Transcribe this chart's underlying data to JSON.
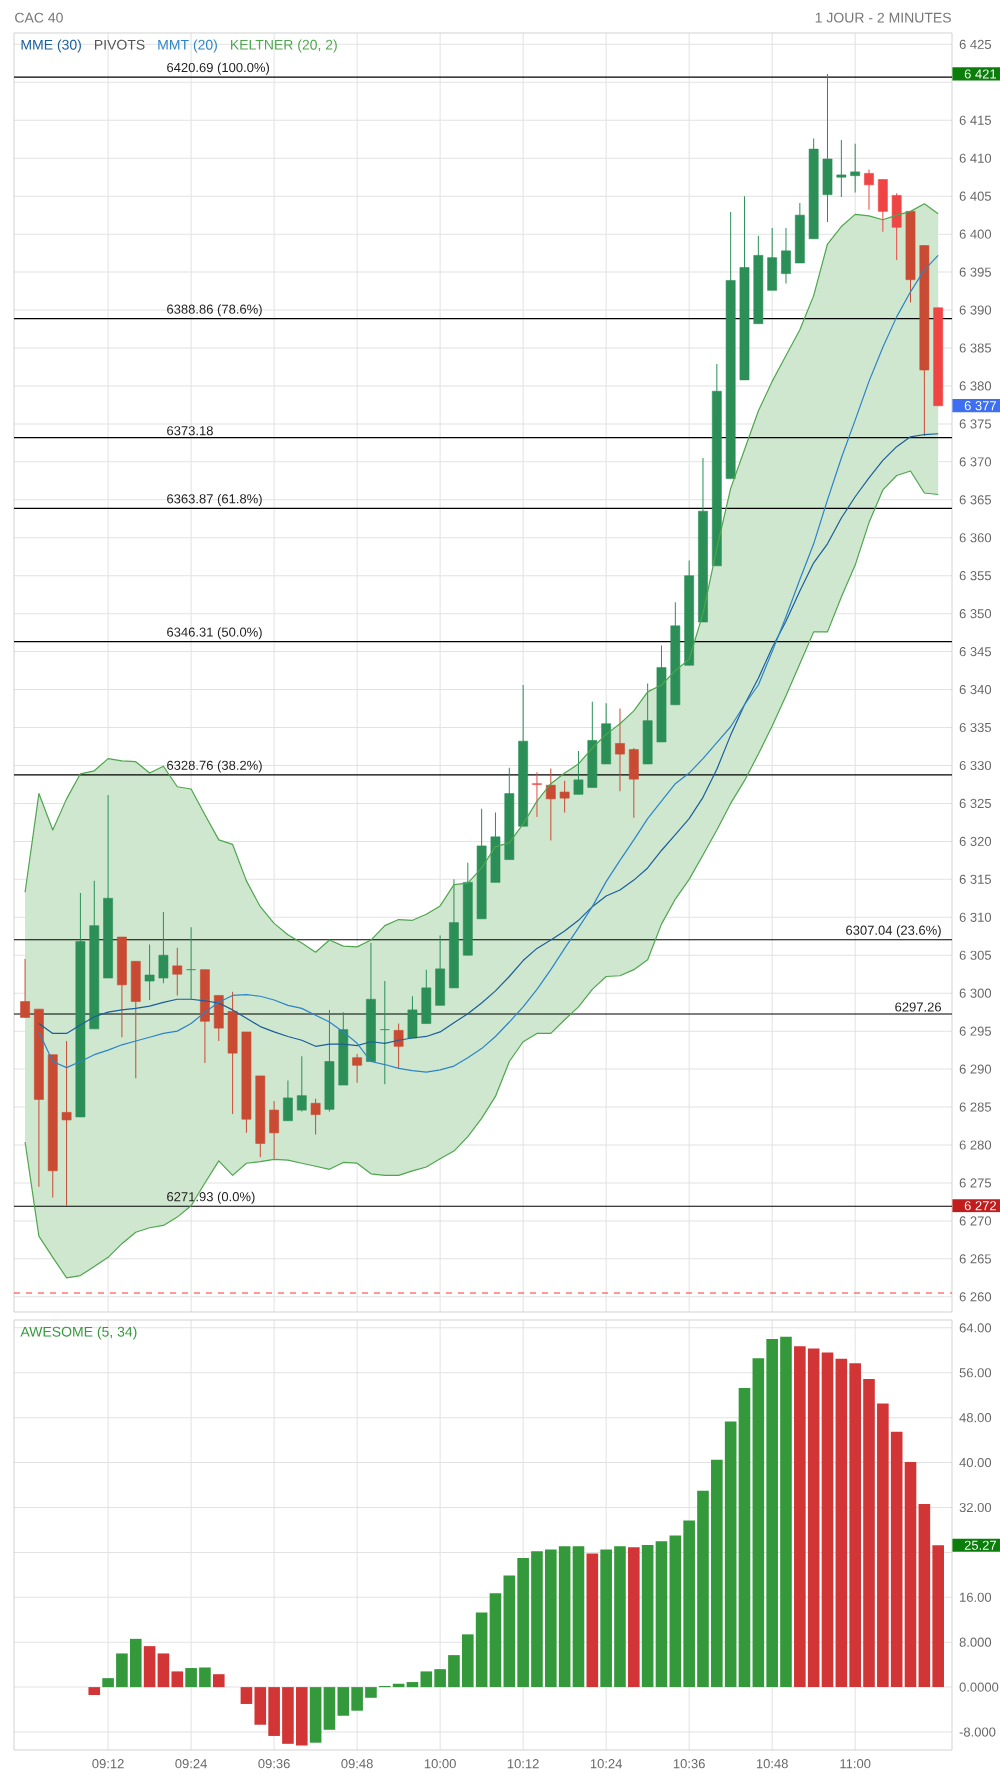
{
  "chart_data": [
    {
      "type": "candlestick",
      "title": "CAC 40",
      "subtitle": "1 JOUR - 2 MINUTES",
      "x": [
        9.0,
        9.0333,
        9.0667,
        9.1,
        9.1333,
        9.1667,
        9.2,
        9.2333,
        9.2667,
        9.3,
        9.3333,
        9.3667,
        9.4,
        9.4333,
        9.4667,
        9.5,
        9.5333,
        9.5667,
        9.6,
        9.6333,
        9.6667,
        9.7,
        9.7333,
        9.7667,
        9.8,
        9.8333,
        9.8667,
        9.9,
        9.9333,
        9.9667,
        10.0,
        10.0333,
        10.0667,
        10.1,
        10.1333,
        10.1667,
        10.2,
        10.2333,
        10.2667,
        10.3,
        10.3333,
        10.3667,
        10.4,
        10.4333,
        10.4667,
        10.5,
        10.5333,
        10.5667,
        10.6,
        10.6333,
        10.6667,
        10.7,
        10.7333,
        10.7667,
        10.8,
        10.8333,
        10.8667,
        10.9,
        10.9333,
        10.9667,
        11.0,
        11.0333,
        11.0667,
        11.1,
        11.1333,
        11.1667,
        11.2
      ],
      "ohlc": [
        [
          6298.9,
          6304.5,
          6296.8,
          6296.8
        ],
        [
          6297.9,
          6297.9,
          6274.5,
          6286.0
        ],
        [
          6291.9,
          6291.9,
          6273.1,
          6276.6
        ],
        [
          6284.3,
          6293.7,
          6272.0,
          6283.3
        ],
        [
          6283.7,
          6313.2,
          6283.7,
          6306.8
        ],
        [
          6295.3,
          6314.8,
          6295.3,
          6308.9
        ],
        [
          6302.0,
          6326.1,
          6302.0,
          6312.5
        ],
        [
          6307.4,
          6307.4,
          6294.2,
          6301.1
        ],
        [
          6304.2,
          6304.2,
          6288.8,
          6298.9
        ],
        [
          6301.6,
          6306.4,
          6299.1,
          6302.4
        ],
        [
          6302.0,
          6310.7,
          6301.3,
          6305.0
        ],
        [
          6303.6,
          6306.0,
          6299.7,
          6302.5
        ],
        [
          6303.1,
          6308.7,
          6299.2,
          6303.1
        ],
        [
          6303.1,
          6303.1,
          6290.8,
          6296.3
        ],
        [
          6299.7,
          6299.7,
          6293.7,
          6295.4
        ],
        [
          6297.6,
          6300.2,
          6284.1,
          6292.1
        ],
        [
          6294.9,
          6294.9,
          6281.6,
          6283.4
        ],
        [
          6289.1,
          6289.1,
          6278.4,
          6280.2
        ],
        [
          6284.6,
          6285.8,
          6278.2,
          6281.6
        ],
        [
          6283.2,
          6288.5,
          6283.2,
          6286.2
        ],
        [
          6284.6,
          6291.7,
          6284.4,
          6286.5
        ],
        [
          6285.5,
          6286.1,
          6281.4,
          6284.0
        ],
        [
          6284.7,
          6297.8,
          6284.4,
          6291.0
        ],
        [
          6287.9,
          6297.5,
          6287.9,
          6295.2
        ],
        [
          6291.5,
          6292.0,
          6288.2,
          6290.5
        ],
        [
          6291.0,
          6306.6,
          6291.0,
          6299.2
        ],
        [
          6295.2,
          6301.6,
          6288.0,
          6295.2
        ],
        [
          6295.1,
          6296.0,
          6290.1,
          6293.0
        ],
        [
          6294.1,
          6299.6,
          6294.1,
          6297.8
        ],
        [
          6296.0,
          6303.1,
          6296.0,
          6300.7
        ],
        [
          6298.4,
          6307.6,
          6298.4,
          6303.2
        ],
        [
          6300.7,
          6315.0,
          6300.7,
          6309.3
        ],
        [
          6305.0,
          6317.2,
          6305.0,
          6314.6
        ],
        [
          6309.8,
          6324.3,
          6309.8,
          6319.4
        ],
        [
          6314.6,
          6323.8,
          6314.6,
          6320.6
        ],
        [
          6317.6,
          6329.7,
          6317.6,
          6326.3
        ],
        [
          6322.0,
          6340.6,
          6322.0,
          6333.2
        ],
        [
          6327.6,
          6329.1,
          6323.2,
          6327.5
        ],
        [
          6327.4,
          6329.6,
          6320.1,
          6325.6
        ],
        [
          6326.5,
          6328.0,
          6323.8,
          6325.7
        ],
        [
          6326.2,
          6331.9,
          6326.2,
          6328.1
        ],
        [
          6327.1,
          6338.4,
          6327.1,
          6333.3
        ],
        [
          6330.2,
          6338.2,
          6330.2,
          6335.5
        ],
        [
          6332.9,
          6337.5,
          6326.6,
          6331.5
        ],
        [
          6332.1,
          6332.3,
          6323.1,
          6328.2
        ],
        [
          6330.2,
          6340.8,
          6330.2,
          6335.9
        ],
        [
          6333.1,
          6345.8,
          6333.1,
          6342.9
        ],
        [
          6338.0,
          6351.5,
          6338.0,
          6348.4
        ],
        [
          6343.2,
          6357.0,
          6343.2,
          6355.0
        ],
        [
          6348.9,
          6370.5,
          6348.9,
          6363.5
        ],
        [
          6356.3,
          6382.9,
          6356.3,
          6379.3
        ],
        [
          6367.8,
          6402.9,
          6367.8,
          6393.9
        ],
        [
          6380.8,
          6405.0,
          6380.8,
          6395.6
        ],
        [
          6388.2,
          6399.8,
          6388.2,
          6397.2
        ],
        [
          6392.6,
          6400.8,
          6392.6,
          6396.9
        ],
        [
          6394.8,
          6400.8,
          6393.5,
          6397.8
        ],
        [
          6396.2,
          6404.1,
          6396.2,
          6402.5
        ],
        [
          6399.4,
          6412.6,
          6399.4,
          6411.2
        ],
        [
          6405.2,
          6421.1,
          6401.6,
          6409.9
        ],
        [
          6407.5,
          6412.4,
          6404.9,
          6407.8
        ],
        [
          6407.7,
          6411.9,
          6405.5,
          6408.2
        ],
        [
          6408.0,
          6408.5,
          6403.2,
          6406.5
        ],
        [
          6407.2,
          6407.2,
          6400.3,
          6403.0
        ],
        [
          6405.1,
          6405.4,
          6396.6,
          6400.9
        ],
        [
          6403.0,
          6403.0,
          6391.0,
          6394.0
        ],
        [
          6398.5,
          6398.5,
          6373.4,
          6382.1
        ],
        [
          6390.3,
          6390.3,
          6377.4,
          6377.4
        ]
      ],
      "colors": [
        "#c94b33",
        "#c94b33",
        "#c94b33",
        "#c94b33",
        "#2b8f57",
        "#2b8f57",
        "#2b8f57",
        "#c94b33",
        "#c94b33",
        "#2b8f57",
        "#2b8f57",
        "#c94b33",
        "#2b8f57",
        "#c94b33",
        "#c94b33",
        "#c94b33",
        "#c94b33",
        "#c94b33",
        "#c94b33",
        "#2b8f57",
        "#2b8f57",
        "#c94b33",
        "#2b8f57",
        "#2b8f57",
        "#c94b33",
        "#2b8f57",
        "#2b8f57",
        "#c94b33",
        "#2b8f57",
        "#2b8f57",
        "#2b8f57",
        "#2b8f57",
        "#2b8f57",
        "#2b8f57",
        "#2b8f57",
        "#2b8f57",
        "#2b8f57",
        "#f04545",
        "#c94b33",
        "#c94b33",
        "#2b8f57",
        "#2b8f57",
        "#2b8f57",
        "#c94b33",
        "#c94b33",
        "#2b8f57",
        "#2b8f57",
        "#2b8f57",
        "#2b8f57",
        "#2b8f57",
        "#2b8f57",
        "#2b8f57",
        "#2b8f57",
        "#2b8f57",
        "#2b8f57",
        "#2b8f57",
        "#2b8f57",
        "#2b8f57",
        "#2b8f57",
        "#2b8f57",
        "#2b8f57",
        "#f04545",
        "#f04545",
        "#f04545",
        "#c94b33",
        "#c94b33",
        "#f04545"
      ],
      "series": [
        {
          "name": "MME (30)",
          "type": "line",
          "color": "#1a5f9a",
          "values": [
            null,
            6296.0,
            6294.7,
            6294.7,
            6295.8,
            6296.9,
            6297.5,
            6297.8,
            6298.0,
            6298.3,
            6298.8,
            6299.2,
            6299.2,
            6299.0,
            6298.7,
            6297.8,
            6296.7,
            6295.6,
            6294.9,
            6294.3,
            6293.8,
            6293.0,
            6293.3,
            6293.3,
            6293.1,
            6293.6,
            6293.4,
            6293.8,
            6294.1,
            6294.3,
            6294.9,
            6296.1,
            6297.3,
            6298.7,
            6300.3,
            6302.2,
            6304.3,
            6305.9,
            6307.0,
            6308.2,
            6309.6,
            6311.4,
            6312.8,
            6313.6,
            6314.9,
            6316.5,
            6318.8,
            6320.9,
            6323.0,
            6325.8,
            6329.5,
            6334.0,
            6338.0,
            6341.5,
            6345.5,
            6349.0,
            6353.0,
            6356.7,
            6359.2,
            6362.6,
            6365.4,
            6367.9,
            6370.2,
            6372.0,
            6373.3,
            6373.6,
            6373.7
          ]
        },
        {
          "name": "MMT (20)",
          "type": "line",
          "color": "#2b84c8",
          "values": [
            null,
            6294.9,
            6291.0,
            6290.2,
            6291.0,
            6291.9,
            6292.5,
            6293.2,
            6293.7,
            6294.2,
            6294.7,
            6295.0,
            6296.0,
            6297.5,
            6298.8,
            6299.7,
            6299.8,
            6299.6,
            6299.1,
            6298.4,
            6298.0,
            6297.1,
            6296.2,
            6294.9,
            6293.4,
            6291.0,
            6290.6,
            6290.1,
            6289.8,
            6289.6,
            6289.9,
            6290.4,
            6291.5,
            6292.7,
            6294.3,
            6296.2,
            6298.2,
            6300.5,
            6303.1,
            6305.9,
            6308.6,
            6311.4,
            6314.7,
            6317.5,
            6320.2,
            6323.0,
            6325.3,
            6327.6,
            6329.0,
            6330.9,
            6333.0,
            6335.1,
            6338.0,
            6340.6,
            6345.0,
            6349.6,
            6354.5,
            6359.2,
            6365.0,
            6370.5,
            6375.5,
            6380.6,
            6385.1,
            6389.1,
            6392.4,
            6395.3,
            6397.2
          ]
        },
        {
          "name": "KELTNER (20, 2)",
          "type": "area",
          "color": "#4ea64e",
          "values": [
            6313.3,
            6326.3,
            6321.5,
            6325.6,
            6328.9,
            6329.3,
            6330.9,
            6330.6,
            6330.5,
            6329.0,
            6329.9,
            6327.2,
            6326.9,
            6323.5,
            6320.2,
            6319.6,
            6314.8,
            6311.4,
            6309.2,
            6307.7,
            6306.6,
            6305.4,
            6307.0,
            6306.2,
            6306.1,
            6307.0,
            6308.9,
            6309.7,
            6309.6,
            6310.4,
            6311.5,
            6314.3,
            6314.5,
            6316.5,
            6319.3,
            6319.8,
            6322.3,
            6325.3,
            6327.6,
            6329.0,
            6330.2,
            6332.3,
            6334.1,
            6335.5,
            6337.2,
            6339.7,
            6340.6,
            6342.5,
            6344.0,
            6350.0,
            6358.6,
            6366.5,
            6371.6,
            6376.7,
            6380.6,
            6384.0,
            6387.4,
            6391.9,
            6398.7,
            6401.0,
            6402.6,
            6402.4,
            6401.9,
            6402.5,
            6403.0,
            6404.0,
            6402.7
          ]
        },
        {
          "type": "line",
          "color": "#4ea64e",
          "values": [
            6280.4,
            6268.0,
            6265.2,
            6262.5,
            6262.8,
            6264.0,
            6265.2,
            6267.0,
            6268.5,
            6269.1,
            6269.4,
            6270.5,
            6272.0,
            6275.0,
            6277.9,
            6276.0,
            6277.6,
            6277.8,
            6278.1,
            6278.0,
            6277.6,
            6277.2,
            6276.8,
            6277.7,
            6277.6,
            6276.2,
            6276.0,
            6276.0,
            6276.6,
            6277.1,
            6278.2,
            6279.2,
            6281.1,
            6283.5,
            6286.4,
            6291.0,
            6293.6,
            6294.7,
            6294.7,
            6296.5,
            6298.2,
            6300.5,
            6302.2,
            6302.3,
            6303.1,
            6304.4,
            6309.1,
            6312.4,
            6315.0,
            6318.2,
            6321.5,
            6325.0,
            6328.0,
            6331.5,
            6335.2,
            6339.2,
            6343.4,
            6347.6,
            6347.6,
            6352.2,
            6356.4,
            6362.0,
            6366.3,
            6368.2,
            6368.8,
            6365.9,
            6365.7
          ]
        }
      ],
      "ref_lines": [
        {
          "axis": "y",
          "value": 6420.69,
          "label": "6420.69 (100.0%)"
        },
        {
          "axis": "y",
          "value": 6388.86,
          "label": "6388.86 (78.6%)"
        },
        {
          "axis": "y",
          "value": 6373.18,
          "label": "6373.18"
        },
        {
          "axis": "y",
          "value": 6363.87,
          "label": "6363.87 (61.8%)"
        },
        {
          "axis": "y",
          "value": 6346.31,
          "label": "6346.31 (50.0%)"
        },
        {
          "axis": "y",
          "value": 6328.76,
          "label": "6328.76 (38.2%)"
        },
        {
          "axis": "y",
          "value": 6307.04,
          "label": "6307.04 (23.6%)"
        },
        {
          "axis": "y",
          "value": 6297.26,
          "label": "6297.26"
        },
        {
          "axis": "y",
          "value": 6271.93,
          "label": "6271.93 (0.0%)"
        },
        {
          "axis": "y",
          "value": 6260.5,
          "color": "#ff3333",
          "line_style": "dashed"
        }
      ],
      "annotations": [
        "PIVOTS",
        "6 421",
        "6 377",
        "6 272"
      ],
      "xlim": [
        8.9733,
        11.2333
      ],
      "ylim": [
        6258,
        6426.5
      ],
      "xticks": [
        {
          "value": 9.2,
          "label": null
        },
        {
          "value": 9.4,
          "label": null
        },
        {
          "value": 9.6,
          "label": null
        },
        {
          "value": 9.8,
          "label": null
        },
        {
          "value": 10.0,
          "label": null
        },
        {
          "value": 10.2,
          "label": null
        },
        {
          "value": 10.4,
          "label": null
        },
        {
          "value": 10.6,
          "label": null
        },
        {
          "value": 10.8,
          "label": null
        },
        {
          "value": 11.0,
          "label": null
        }
      ],
      "yticks": [
        {
          "value": 6260,
          "label": "6 260"
        },
        {
          "value": 6265,
          "label": "6 265"
        },
        {
          "value": 6270,
          "label": "6 270"
        },
        {
          "value": 6275,
          "label": "6 275"
        },
        {
          "value": 6280,
          "label": "6 280"
        },
        {
          "value": 6285,
          "label": "6 285"
        },
        {
          "value": 6290,
          "label": "6 290"
        },
        {
          "value": 6295,
          "label": "6 295"
        },
        {
          "value": 6300,
          "label": "6 300"
        },
        {
          "value": 6305,
          "label": "6 305"
        },
        {
          "value": 6310,
          "label": "6 310"
        },
        {
          "value": 6315,
          "label": "6 315"
        },
        {
          "value": 6320,
          "label": "6 320"
        },
        {
          "value": 6325,
          "label": "6 325"
        },
        {
          "value": 6330,
          "label": "6 330"
        },
        {
          "value": 6335,
          "label": "6 335"
        },
        {
          "value": 6340,
          "label": "6 340"
        },
        {
          "value": 6345,
          "label": "6 345"
        },
        {
          "value": 6350,
          "label": "6 350"
        },
        {
          "value": 6355,
          "label": "6 355"
        },
        {
          "value": 6360,
          "label": "6 360"
        },
        {
          "value": 6365,
          "label": "6 365"
        },
        {
          "value": 6370,
          "label": "6 370"
        },
        {
          "value": 6375,
          "label": "6 375"
        },
        {
          "value": 6380,
          "label": "6 380"
        },
        {
          "value": 6385,
          "label": "6 385"
        },
        {
          "value": 6390,
          "label": "6 390"
        },
        {
          "value": 6395,
          "label": "6 395"
        },
        {
          "value": 6400,
          "label": "6 400"
        },
        {
          "value": 6405,
          "label": "6 405"
        },
        {
          "value": 6410,
          "label": "6 410"
        },
        {
          "value": 6415,
          "label": "6 415"
        },
        {
          "value": 6420,
          "label": null
        },
        {
          "value": 6425,
          "label": "6 425"
        }
      ],
      "grid": true,
      "legend": "top left",
      "tick_labels": "y"
    },
    {
      "type": "bar",
      "title": "AWESOME (5, 34)",
      "x": [
        9.1667,
        9.2,
        9.2333,
        9.2667,
        9.3,
        9.3333,
        9.3667,
        9.4,
        9.4333,
        9.4667,
        9.5,
        9.5333,
        9.5667,
        9.6,
        9.6333,
        9.6667,
        9.7,
        9.7333,
        9.7667,
        9.8,
        9.8333,
        9.8667,
        9.9,
        9.9333,
        9.9667,
        10.0,
        10.0333,
        10.0667,
        10.1,
        10.1333,
        10.1667,
        10.2,
        10.2333,
        10.2667,
        10.3,
        10.3333,
        10.3667,
        10.4,
        10.4333,
        10.4667,
        10.5,
        10.5333,
        10.5667,
        10.6,
        10.6333,
        10.6667,
        10.7,
        10.7333,
        10.7667,
        10.8,
        10.8333,
        10.8667,
        10.9,
        10.9333,
        10.9667,
        11.0,
        11.0333,
        11.0667,
        11.1,
        11.1333,
        11.1667,
        11.2
      ],
      "values": [
        -1.4,
        1.6,
        6.0,
        8.6,
        7.3,
        6.0,
        2.8,
        3.4,
        3.5,
        2.3,
        null,
        -3.0,
        -6.7,
        -8.7,
        -10.1,
        -10.4,
        -9.9,
        -7.6,
        -5.1,
        -4.2,
        -1.9,
        0.2,
        0.6,
        0.9,
        2.8,
        3.2,
        5.7,
        9.4,
        13.3,
        16.7,
        19.9,
        23.0,
        24.2,
        24.5,
        25.1,
        25.1,
        23.8,
        24.5,
        25.1,
        24.9,
        25.3,
        26.0,
        27.0,
        29.7,
        35.0,
        40.5,
        47.3,
        53.3,
        58.6,
        62.0,
        62.4,
        60.7,
        60.3,
        59.6,
        58.5,
        57.7,
        54.9,
        50.5,
        45.5,
        40.1,
        32.6,
        25.27
      ],
      "colors": [
        "#d13535",
        "#33993a",
        "#33993a",
        "#33993a",
        "#d13535",
        "#d13535",
        "#d13535",
        "#33993a",
        "#33993a",
        "#d13535",
        "#d13535",
        "#d13535",
        "#d13535",
        "#d13535",
        "#d13535",
        "#d13535",
        "#33993a",
        "#33993a",
        "#33993a",
        "#33993a",
        "#33993a",
        "#33993a",
        "#33993a",
        "#33993a",
        "#33993a",
        "#33993a",
        "#33993a",
        "#33993a",
        "#33993a",
        "#33993a",
        "#33993a",
        "#33993a",
        "#33993a",
        "#33993a",
        "#33993a",
        "#33993a",
        "#d13535",
        "#33993a",
        "#33993a",
        "#d13535",
        "#33993a",
        "#33993a",
        "#33993a",
        "#33993a",
        "#33993a",
        "#33993a",
        "#33993a",
        "#33993a",
        "#33993a",
        "#33993a",
        "#33993a",
        "#d13535",
        "#d13535",
        "#d13535",
        "#d13535",
        "#d13535",
        "#d13535",
        "#d13535",
        "#d13535",
        "#d13535",
        "#d13535",
        "#d13535"
      ],
      "annotations": [
        "25.27"
      ],
      "xlim": [
        8.9733,
        11.2333
      ],
      "ylim": [
        -11.2,
        65.4
      ],
      "xticks": [
        {
          "value": 9.2,
          "label": "09:12"
        },
        {
          "value": 9.4,
          "label": "09:24"
        },
        {
          "value": 9.6,
          "label": "09:36"
        },
        {
          "value": 9.8,
          "label": "09:48"
        },
        {
          "value": 10.0,
          "label": "10:00"
        },
        {
          "value": 10.2,
          "label": "10:12"
        },
        {
          "value": 10.4,
          "label": "10:24"
        },
        {
          "value": 10.6,
          "label": "10:36"
        },
        {
          "value": 10.8,
          "label": "10:48"
        },
        {
          "value": 11.0,
          "label": "11:00"
        }
      ],
      "yticks": [
        {
          "value": -8,
          "label": "-8.000"
        },
        {
          "value": 0,
          "label": "0.0000"
        },
        {
          "value": 8,
          "label": "8.000"
        },
        {
          "value": 16,
          "label": "16.00"
        },
        {
          "value": 24,
          "label": null
        },
        {
          "value": 32,
          "label": "32.00"
        },
        {
          "value": 40,
          "label": "40.00"
        },
        {
          "value": 48,
          "label": "48.00"
        },
        {
          "value": 56,
          "label": "56.00"
        },
        {
          "value": 64,
          "label": "64.00"
        }
      ],
      "grid": true
    }
  ]
}
